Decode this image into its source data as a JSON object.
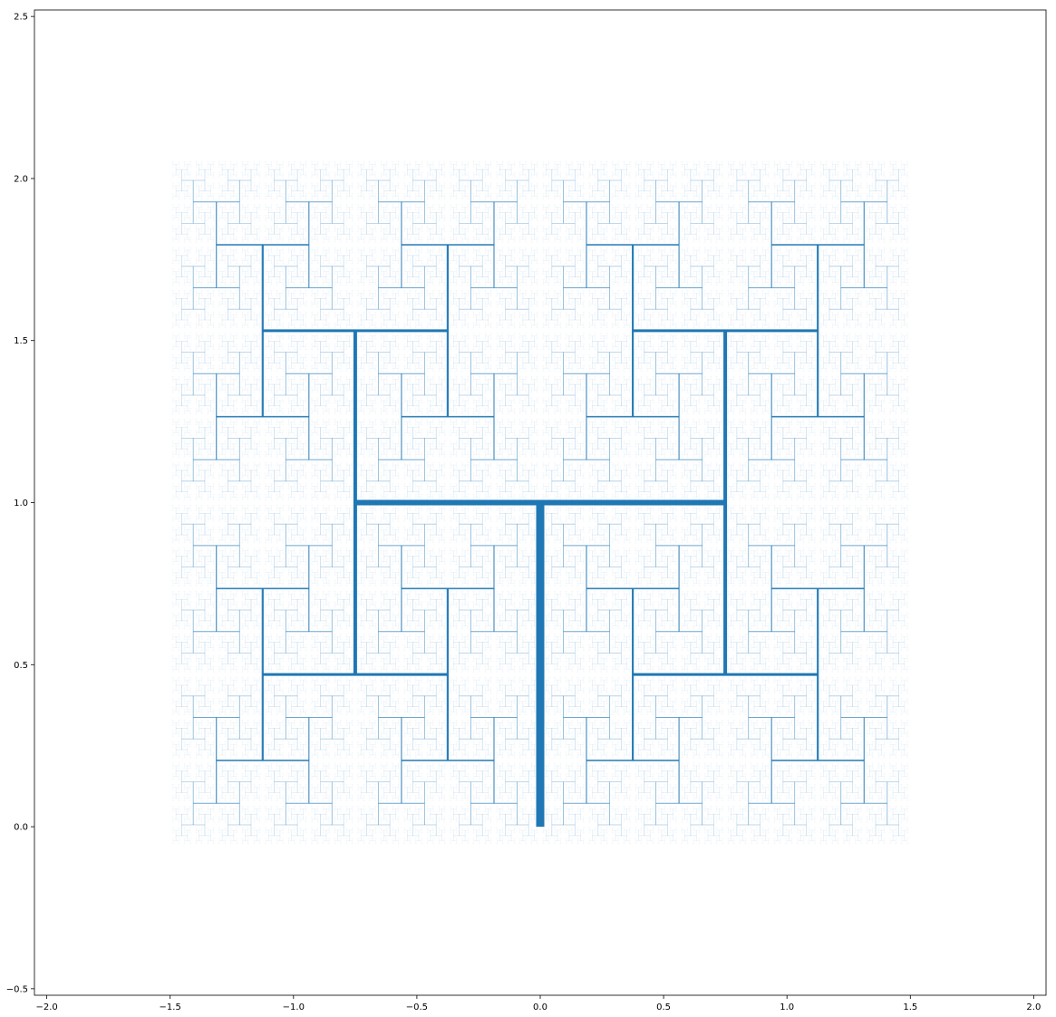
{
  "chart_data": {
    "type": "line",
    "title": "",
    "xlabel": "",
    "ylabel": "",
    "xlim": [
      -2.05,
      2.05
    ],
    "ylim": [
      -0.52,
      2.52
    ],
    "xticks": [
      {
        "value": -2.0,
        "label": "−2.0"
      },
      {
        "value": -1.5,
        "label": "−1.5"
      },
      {
        "value": -1.0,
        "label": "−1.0"
      },
      {
        "value": -0.5,
        "label": "−0.5"
      },
      {
        "value": 0.0,
        "label": "0.0"
      },
      {
        "value": 0.5,
        "label": "0.5"
      },
      {
        "value": 1.0,
        "label": "1.0"
      },
      {
        "value": 1.5,
        "label": "1.5"
      },
      {
        "value": 2.0,
        "label": "2.0"
      }
    ],
    "yticks": [
      {
        "value": -0.5,
        "label": "−0.5"
      },
      {
        "value": 0.0,
        "label": "0.0"
      },
      {
        "value": 0.5,
        "label": "0.5"
      },
      {
        "value": 1.0,
        "label": "1.0"
      },
      {
        "value": 1.5,
        "label": "1.5"
      },
      {
        "value": 2.0,
        "label": "2.0"
      },
      {
        "value": 2.5,
        "label": "2.5"
      }
    ],
    "grid": false,
    "legend": "none",
    "line_color": "#1f77b4",
    "description": "H-tree fractal: trunk from (0,0) to (0,1); each branch splits into two perpendicular branches scaled by 1/sqrt(2); line width and opacity decrease with depth",
    "fractal": {
      "trunk": {
        "x": [
          0.0,
          0.0
        ],
        "y": [
          0.0,
          1.0
        ]
      },
      "first_crossbar": {
        "x": [
          -0.75,
          0.75
        ],
        "y": [
          1.0,
          1.0
        ]
      },
      "second_level_verticals": [
        {
          "x": [
            -0.75,
            -0.75
          ],
          "y": [
            0.44,
            1.56
          ]
        },
        {
          "x": [
            0.75,
            0.75
          ],
          "y": [
            0.44,
            1.56
          ]
        }
      ],
      "scale_factor": 0.7071,
      "depth": 16,
      "extent": {
        "x": [
          -1.7,
          1.7
        ],
        "y": [
          -0.27,
          2.27
        ]
      }
    }
  }
}
